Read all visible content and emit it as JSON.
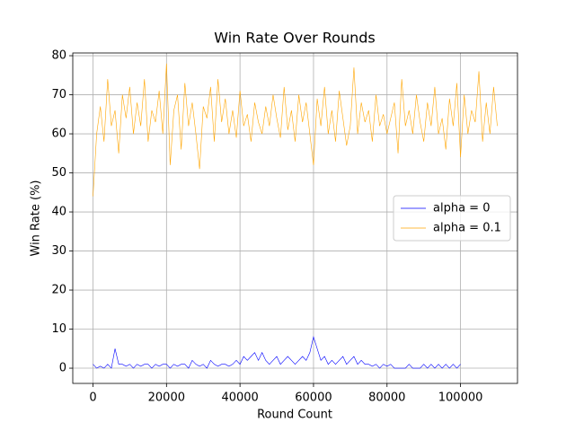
{
  "chart_data": {
    "type": "line",
    "title": "Win Rate Over Rounds",
    "x_label": "Round Count",
    "y_label": "Win Rate (%)",
    "xlim": [
      -5500,
      115500
    ],
    "ylim": [
      -3.9,
      80.7
    ],
    "xticks": [
      0,
      20000,
      40000,
      60000,
      80000,
      100000
    ],
    "yticks": [
      0,
      10,
      20,
      30,
      40,
      50,
      60,
      70,
      80
    ],
    "grid": true,
    "legend": "center right",
    "series": [
      {
        "name": "alpha = 0",
        "color": "#0000ff",
        "x": [
          0,
          1000,
          2000,
          3000,
          4000,
          5000,
          6000,
          7000,
          8000,
          9000,
          10000,
          11000,
          12000,
          13000,
          14000,
          15000,
          16000,
          17000,
          18000,
          19000,
          20000,
          21000,
          22000,
          23000,
          24000,
          25000,
          26000,
          27000,
          28000,
          29000,
          30000,
          31000,
          32000,
          33000,
          34000,
          35000,
          36000,
          37000,
          38000,
          39000,
          40000,
          41000,
          42000,
          43000,
          44000,
          45000,
          46000,
          47000,
          48000,
          49000,
          50000,
          51000,
          52000,
          53000,
          54000,
          55000,
          56000,
          57000,
          58000,
          59000,
          60000,
          61000,
          62000,
          63000,
          64000,
          65000,
          66000,
          67000,
          68000,
          69000,
          70000,
          71000,
          72000,
          73000,
          74000,
          75000,
          76000,
          77000,
          78000,
          79000,
          80000,
          81000,
          82000,
          83000,
          84000,
          85000,
          86000,
          87000,
          88000,
          89000,
          90000,
          91000,
          92000,
          93000,
          94000,
          95000,
          96000,
          97000,
          98000,
          99000,
          100000
        ],
        "values": [
          1,
          0,
          0.5,
          0,
          1,
          0,
          5,
          1,
          1,
          0.5,
          1,
          0,
          1,
          0.5,
          1,
          1,
          0,
          1,
          0.5,
          1,
          1,
          0,
          1,
          0.5,
          1,
          1,
          0,
          2,
          1,
          0.5,
          1,
          0,
          2,
          1,
          0.5,
          1,
          1,
          0.5,
          1,
          2,
          1,
          3,
          2,
          3,
          4,
          2,
          4,
          2,
          1,
          2,
          3,
          1,
          2,
          3,
          2,
          1,
          2,
          3,
          2,
          4,
          8,
          5,
          2,
          3,
          1,
          2,
          1,
          2,
          3,
          1,
          2,
          3,
          1,
          2,
          1,
          1,
          0.5,
          1,
          0,
          1,
          0.5,
          1,
          0,
          0,
          0,
          0,
          1,
          0,
          0,
          0,
          1,
          0,
          1,
          0,
          1,
          0,
          1,
          0,
          1,
          0,
          1
        ]
      },
      {
        "name": "alpha = 0.1",
        "color": "#ffa500",
        "x": [
          0,
          1000,
          2000,
          3000,
          4000,
          5000,
          6000,
          7000,
          8000,
          9000,
          10000,
          11000,
          12000,
          13000,
          14000,
          15000,
          16000,
          17000,
          18000,
          19000,
          20000,
          21000,
          22000,
          23000,
          24000,
          25000,
          26000,
          27000,
          28000,
          29000,
          30000,
          31000,
          32000,
          33000,
          34000,
          35000,
          36000,
          37000,
          38000,
          39000,
          40000,
          41000,
          42000,
          43000,
          44000,
          45000,
          46000,
          47000,
          48000,
          49000,
          50000,
          51000,
          52000,
          53000,
          54000,
          55000,
          56000,
          57000,
          58000,
          59000,
          60000,
          61000,
          62000,
          63000,
          64000,
          65000,
          66000,
          67000,
          68000,
          69000,
          70000,
          71000,
          72000,
          73000,
          74000,
          75000,
          76000,
          77000,
          78000,
          79000,
          80000,
          81000,
          82000,
          83000,
          84000,
          85000,
          86000,
          87000,
          88000,
          89000,
          90000,
          91000,
          92000,
          93000,
          94000,
          95000,
          96000,
          97000,
          98000,
          99000,
          100000,
          101000,
          102000,
          103000,
          104000,
          105000,
          106000,
          107000,
          108000,
          109000,
          110000
        ],
        "values": [
          44,
          60,
          67,
          58,
          74,
          62,
          66,
          55,
          70,
          64,
          72,
          60,
          68,
          62,
          74,
          58,
          66,
          63,
          71,
          60,
          78,
          52,
          66,
          70,
          56,
          73,
          62,
          68,
          60,
          51,
          67,
          64,
          72,
          58,
          74,
          63,
          69,
          60,
          66,
          59,
          71,
          62,
          65,
          58,
          68,
          63,
          60,
          67,
          62,
          70,
          64,
          59,
          72,
          61,
          66,
          58,
          70,
          63,
          68,
          60,
          52,
          69,
          62,
          72,
          60,
          66,
          58,
          71,
          64,
          57,
          62,
          77,
          60,
          68,
          63,
          66,
          58,
          70,
          62,
          65,
          60,
          64,
          68,
          55,
          74,
          62,
          66,
          60,
          70,
          63,
          58,
          68,
          62,
          72,
          60,
          64,
          56,
          69,
          62,
          73,
          54,
          70,
          60,
          66,
          63,
          76,
          58,
          68,
          60,
          72,
          62
        ]
      }
    ]
  }
}
